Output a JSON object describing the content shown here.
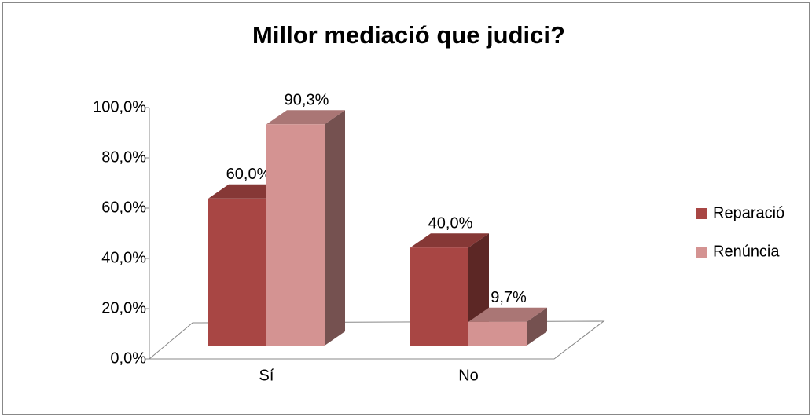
{
  "chart_data": {
    "type": "bar3d",
    "title": "Millor mediació que judici?",
    "categories": [
      "Sí",
      "No"
    ],
    "series": [
      {
        "name": "Reparació",
        "color": "#a84644",
        "values": [
          60.0,
          40.0
        ],
        "value_labels": [
          "60,0%",
          "40,0%"
        ]
      },
      {
        "name": "Renúncia",
        "color": "#d49392",
        "values": [
          90.3,
          9.7
        ],
        "value_labels": [
          "90,3%",
          "9,7%"
        ]
      }
    ],
    "ylim": [
      0,
      100
    ],
    "yticks": [
      {
        "value": 0,
        "label": "0,0%"
      },
      {
        "value": 20,
        "label": "20,0%"
      },
      {
        "value": 40,
        "label": "40,0%"
      },
      {
        "value": 60,
        "label": "60,0%"
      },
      {
        "value": 80,
        "label": "80,0%"
      },
      {
        "value": 100,
        "label": "100,0%"
      }
    ],
    "legend": "right"
  }
}
